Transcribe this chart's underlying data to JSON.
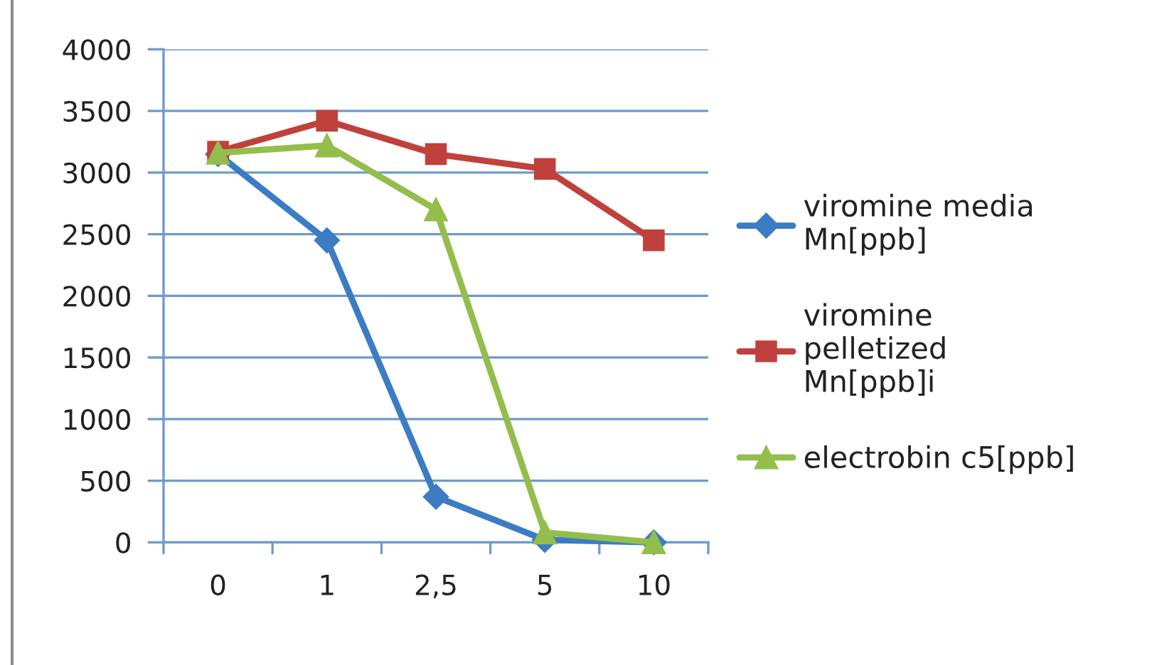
{
  "chart_data": {
    "type": "line",
    "categories": [
      "0",
      "1",
      "2,5",
      "5",
      "10"
    ],
    "series": [
      {
        "name": "viromine media Mn[ppb]",
        "color": "#3b7cc4",
        "marker": "diamond",
        "values": [
          3150,
          2450,
          370,
          20,
          0
        ]
      },
      {
        "name": "viromine pelletized Mn[ppb]i",
        "color": "#c0413c",
        "marker": "square",
        "values": [
          3170,
          3420,
          3150,
          3030,
          2450
        ]
      },
      {
        "name": "electrobin c5[ppb]",
        "color": "#93be4c",
        "marker": "triangle",
        "values": [
          3160,
          3220,
          2700,
          80,
          0
        ]
      }
    ],
    "ylim": [
      0,
      4000
    ],
    "yticks": [
      0,
      500,
      1000,
      1500,
      2000,
      2500,
      3000,
      3500,
      4000
    ],
    "grid": "y",
    "legend": "right",
    "line_style": "solid"
  }
}
